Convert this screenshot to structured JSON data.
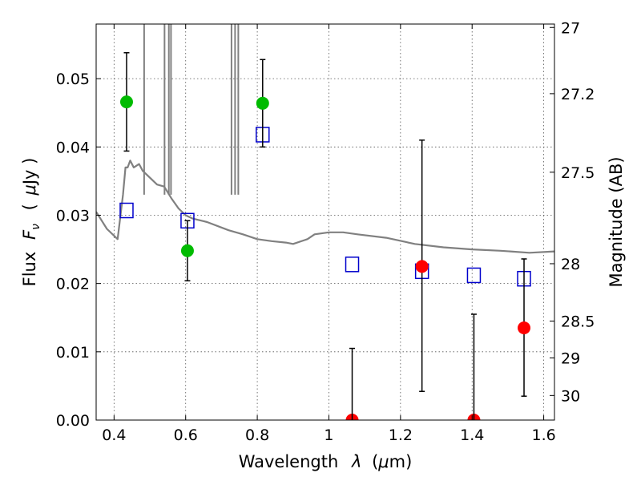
{
  "chart_data": {
    "type": "scatter",
    "title": "",
    "xlabel": "Wavelength",
    "xlabel_symbol": "λ",
    "xlabel_unit_open": "(",
    "xlabel_unit_mu": "μ",
    "xlabel_unit_rest": "m)",
    "ylabel": "Flux",
    "ylabel_symbol_F": "F",
    "ylabel_symbol_sub": "ν",
    "ylabel_unit_open": "(",
    "ylabel_unit_mu": "μ",
    "ylabel_unit_rest": "Jy )",
    "y2label": "Magnitude (AB)",
    "xlim": [
      0.35,
      1.63
    ],
    "ylim": [
      0.0,
      0.058
    ],
    "grid": true,
    "x_ticks": [
      0.4,
      0.6,
      0.8,
      1.0,
      1.2,
      1.4,
      1.6
    ],
    "x_tick_labels": [
      "0.4",
      "0.6",
      "0.8",
      "1",
      "1.2",
      "1.4",
      "1.6"
    ],
    "y_ticks": [
      0.0,
      0.01,
      0.02,
      0.03,
      0.04,
      0.05
    ],
    "y_tick_labels": [
      "0.00",
      "0.01",
      "0.02",
      "0.03",
      "0.04",
      "0.05"
    ],
    "y2_ticks": [
      {
        "flux": 0.0575,
        "label": "27"
      },
      {
        "flux": 0.0478,
        "label": "27.2"
      },
      {
        "flux": 0.0363,
        "label": "27.5"
      },
      {
        "flux": 0.0229,
        "label": "28"
      },
      {
        "flux": 0.0145,
        "label": "28.5"
      },
      {
        "flux": 0.0091,
        "label": "29"
      },
      {
        "flux": 0.0036,
        "label": "30"
      }
    ],
    "series": [
      {
        "kind": "model-spectrum",
        "color": "#808080",
        "points": [
          [
            0.35,
            0.0305
          ],
          [
            0.38,
            0.028
          ],
          [
            0.41,
            0.0265
          ],
          [
            0.425,
            0.033
          ],
          [
            0.432,
            0.037
          ],
          [
            0.438,
            0.037
          ],
          [
            0.445,
            0.038
          ],
          [
            0.455,
            0.037
          ],
          [
            0.47,
            0.0375
          ],
          [
            0.48,
            0.0365
          ],
          [
            0.5,
            0.0355
          ],
          [
            0.52,
            0.0345
          ],
          [
            0.54,
            0.0342
          ],
          [
            0.56,
            0.0325
          ],
          [
            0.58,
            0.031
          ],
          [
            0.6,
            0.03
          ],
          [
            0.62,
            0.0295
          ],
          [
            0.66,
            0.029
          ],
          [
            0.7,
            0.0282
          ],
          [
            0.72,
            0.0278
          ],
          [
            0.76,
            0.0272
          ],
          [
            0.8,
            0.0265
          ],
          [
            0.84,
            0.0262
          ],
          [
            0.88,
            0.026
          ],
          [
            0.9,
            0.0258
          ],
          [
            0.94,
            0.0265
          ],
          [
            0.96,
            0.0272
          ],
          [
            1.0,
            0.0275
          ],
          [
            1.04,
            0.0275
          ],
          [
            1.08,
            0.0272
          ],
          [
            1.16,
            0.0267
          ],
          [
            1.24,
            0.0258
          ],
          [
            1.32,
            0.0253
          ],
          [
            1.4,
            0.025
          ],
          [
            1.48,
            0.0248
          ],
          [
            1.56,
            0.0245
          ],
          [
            1.63,
            0.0247
          ]
        ],
        "emission_lines": [
          {
            "x": 0.484,
            "peak": 0.058
          },
          {
            "x": 0.541,
            "peak": 0.058
          },
          {
            "x": 0.553,
            "peak": 0.058
          },
          {
            "x": 0.559,
            "peak": 0.058
          },
          {
            "x": 0.728,
            "peak": 0.058
          },
          {
            "x": 0.738,
            "peak": 0.058
          },
          {
            "x": 0.747,
            "peak": 0.058
          }
        ]
      },
      {
        "kind": "model-photometry",
        "marker": "open-square",
        "color": "#0000cc",
        "x": [
          0.435,
          0.605,
          0.815,
          1.065,
          1.26,
          1.405,
          1.545
        ],
        "y": [
          0.0307,
          0.0292,
          0.0418,
          0.0228,
          0.0218,
          0.0212,
          0.0207
        ]
      },
      {
        "kind": "detections",
        "marker": "filled-circle",
        "color": "#00bb00",
        "x": [
          0.435,
          0.605,
          0.815
        ],
        "y": [
          0.0466,
          0.0248,
          0.0464
        ],
        "err": [
          0.0072,
          0.0044,
          0.0064
        ]
      },
      {
        "kind": "non-detections",
        "marker": "filled-circle",
        "color": "#ff0000",
        "x": [
          1.065,
          1.26,
          1.405,
          1.545
        ],
        "y": [
          0.0,
          0.0225,
          0.0,
          0.0135
        ],
        "err_low": [
          0.0,
          0.0183,
          0.0,
          0.01
        ],
        "err_high": [
          0.0105,
          0.0185,
          0.0155,
          0.0101
        ]
      }
    ]
  }
}
